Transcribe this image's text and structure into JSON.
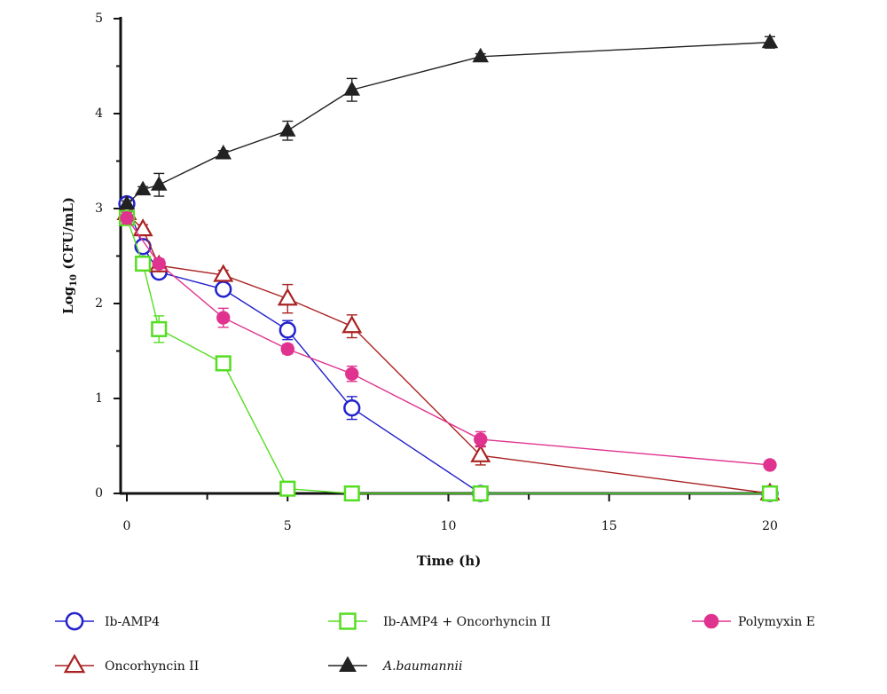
{
  "chart_data": {
    "type": "line",
    "xlabel": "Time (h)",
    "ylabel_main": "Log",
    "ylabel_sub": "10",
    "ylabel_rest": " (CFU/mL)",
    "xlim": [
      0,
      20
    ],
    "ylim": [
      0,
      5
    ],
    "x_ticks": [
      0,
      5,
      10,
      15,
      20
    ],
    "y_ticks": [
      0,
      1,
      2,
      3,
      4,
      5
    ],
    "grid": false,
    "legend_position": "bottom",
    "series": [
      {
        "name": "Ib-AMP4",
        "color": "#2222cc",
        "marker": "circle-open",
        "x": [
          0,
          0.5,
          1,
          3,
          5,
          7,
          11,
          20
        ],
        "y": [
          3.05,
          2.6,
          2.33,
          2.15,
          1.72,
          0.9,
          0.0,
          0.0
        ],
        "err": [
          0.04,
          0.05,
          0.05,
          0.06,
          0.1,
          0.12,
          0.02,
          0.02
        ]
      },
      {
        "name": "Oncorhyncin II",
        "color": "#aa2222",
        "marker": "triangle-open",
        "x": [
          0,
          0.5,
          1,
          3,
          5,
          7,
          11,
          20
        ],
        "y": [
          2.95,
          2.78,
          2.4,
          2.3,
          2.05,
          1.76,
          0.4,
          0.0
        ],
        "err": [
          0.04,
          0.05,
          0.05,
          0.05,
          0.15,
          0.12,
          0.1,
          0.02
        ]
      },
      {
        "name": "Ib-AMP4 + Oncorhyncin II",
        "color": "#55dd22",
        "marker": "square-open",
        "x": [
          0,
          0.5,
          1,
          3,
          5,
          7,
          11,
          20
        ],
        "y": [
          2.9,
          2.42,
          1.73,
          1.37,
          0.05,
          0.0,
          0.0,
          0.0
        ],
        "err": [
          0.04,
          0.05,
          0.14,
          0.05,
          0.02,
          0.02,
          0.02,
          0.02
        ]
      },
      {
        "name": "Polymyxin E",
        "color": "#e0338f",
        "marker": "circle-filled",
        "x": [
          0,
          1,
          3,
          5,
          7,
          11,
          20
        ],
        "y": [
          2.9,
          2.42,
          1.85,
          1.52,
          1.26,
          0.57,
          0.3
        ],
        "err": [
          0.06,
          0.05,
          0.1,
          0.05,
          0.08,
          0.08,
          0.03
        ]
      },
      {
        "name": "A.baumannii",
        "color": "#222222",
        "marker": "triangle-filled",
        "x": [
          0,
          0.5,
          1,
          3,
          5,
          7,
          11,
          20
        ],
        "y": [
          3.05,
          3.2,
          3.25,
          3.58,
          3.82,
          4.25,
          4.6,
          4.75
        ],
        "err": [
          0.03,
          0.03,
          0.12,
          0.03,
          0.1,
          0.12,
          0.03,
          0.06
        ]
      }
    ]
  }
}
